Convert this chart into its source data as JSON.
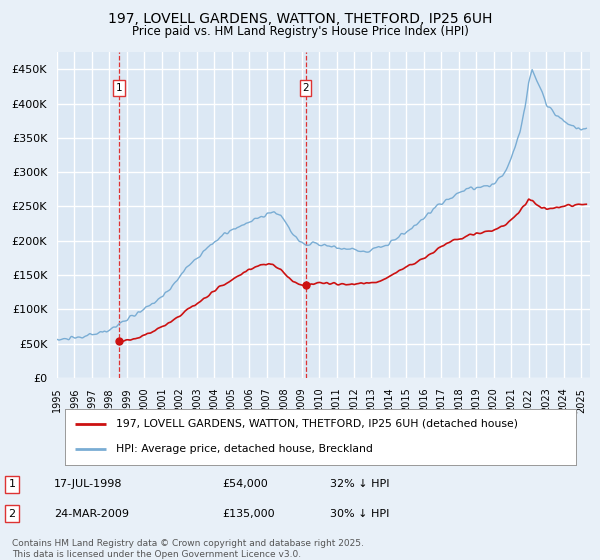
{
  "title": "197, LOVELL GARDENS, WATTON, THETFORD, IP25 6UH",
  "subtitle": "Price paid vs. HM Land Registry's House Price Index (HPI)",
  "ylim": [
    0,
    475000
  ],
  "yticks": [
    0,
    50000,
    100000,
    150000,
    200000,
    250000,
    300000,
    350000,
    400000,
    450000
  ],
  "xlim_start": 1995.0,
  "xlim_end": 2025.5,
  "background_color": "#e8f0f8",
  "plot_bg_color": "#dce8f4",
  "grid_color": "#ffffff",
  "hpi_line_color": "#7aadd4",
  "sale_line_color": "#cc1111",
  "vline_color": "#dd3333",
  "purchase1": {
    "date_decimal": 1998.54,
    "price": 54000,
    "label": "1"
  },
  "purchase2": {
    "date_decimal": 2009.23,
    "price": 135000,
    "label": "2"
  },
  "legend_entry1": "197, LOVELL GARDENS, WATTON, THETFORD, IP25 6UH (detached house)",
  "legend_entry2": "HPI: Average price, detached house, Breckland",
  "footnote": "Contains HM Land Registry data © Crown copyright and database right 2025.\nThis data is licensed under the Open Government Licence v3.0.",
  "table_rows": [
    {
      "num": "1",
      "date": "17-JUL-1998",
      "price": "£54,000",
      "hpi": "32% ↓ HPI"
    },
    {
      "num": "2",
      "date": "24-MAR-2009",
      "price": "£135,000",
      "hpi": "30% ↓ HPI"
    }
  ]
}
